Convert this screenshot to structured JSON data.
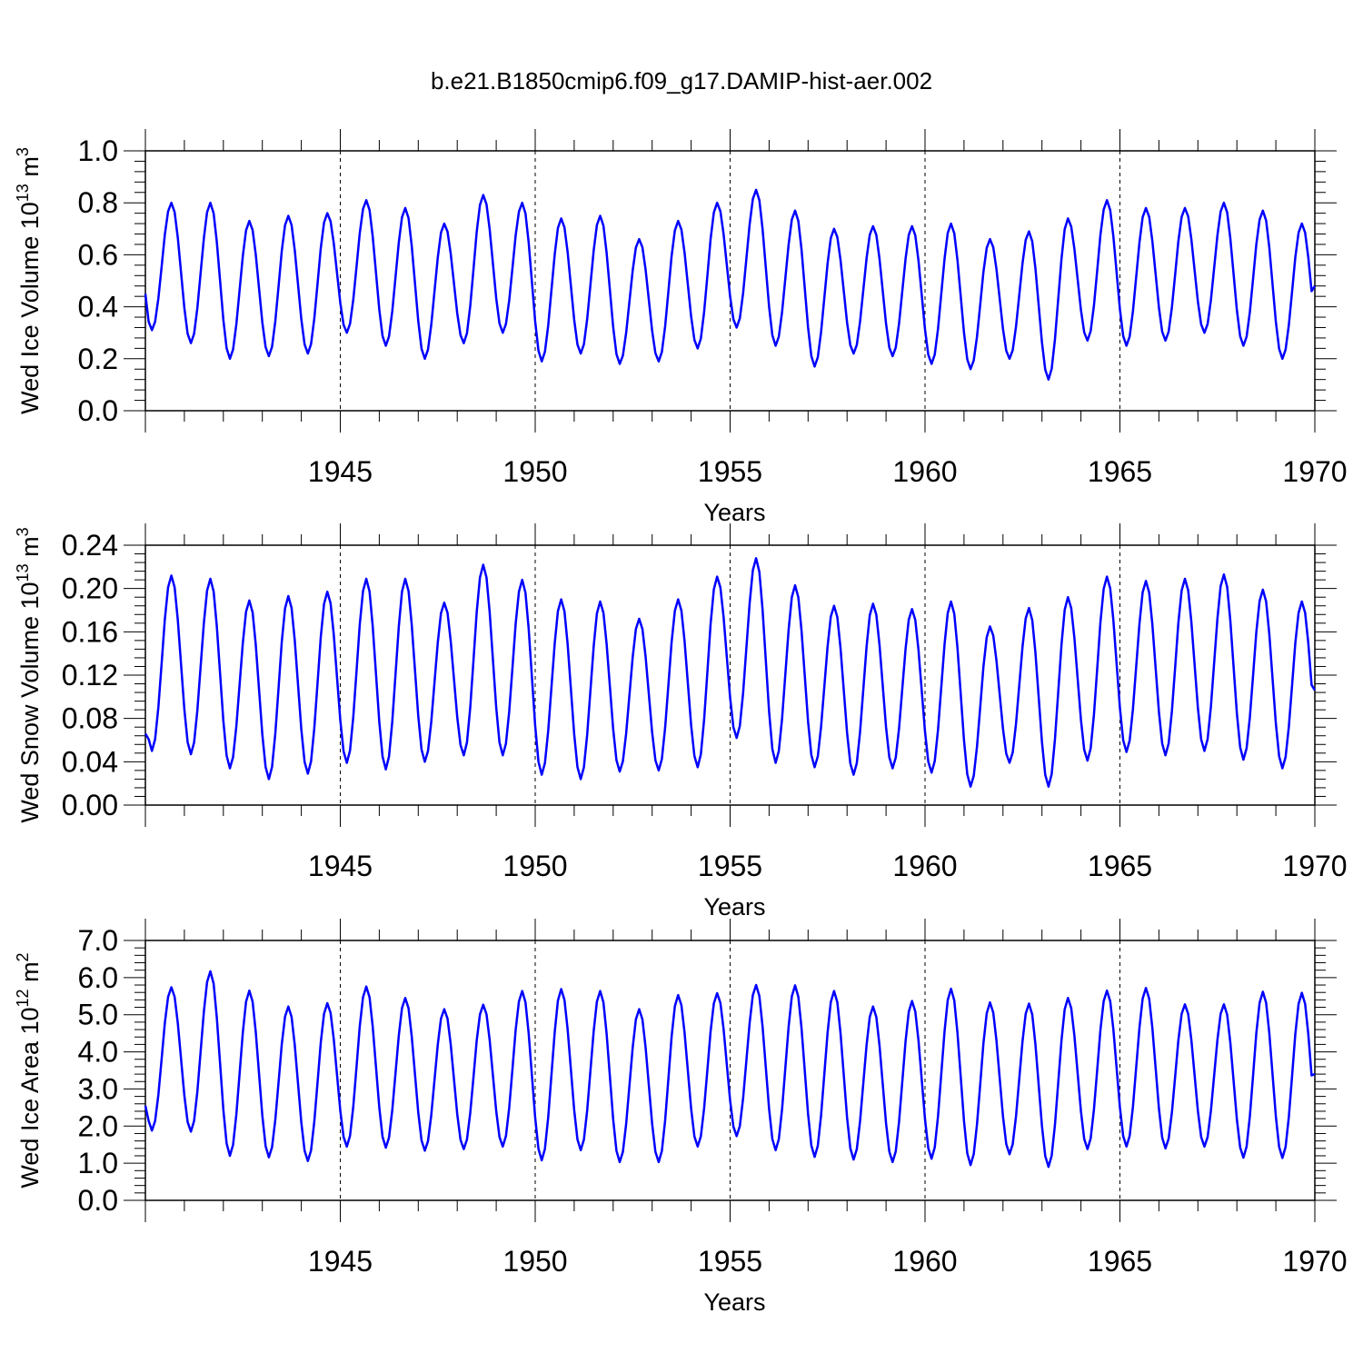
{
  "title": "b.e21.B1850cmip6.f09_g17.DAMIP-hist-aer.002",
  "chart_data": [
    {
      "type": "line",
      "name": "wed-ice-volume",
      "ylabel_main": "Wed Ice Volume 10",
      "ylabel_exp": "13",
      "ylabel_unit": " m",
      "ylabel_unit_exp": "3",
      "xlabel": "Years",
      "xlim": [
        1940,
        1970
      ],
      "ylim": [
        0.0,
        1.0
      ],
      "yticks": [
        "0.0",
        "0.2",
        "0.4",
        "0.6",
        "0.8",
        "1.0"
      ],
      "ytick_values": [
        0.0,
        0.2,
        0.4,
        0.6,
        0.8,
        1.0
      ],
      "xticks": [
        "1945",
        "1950",
        "1955",
        "1960",
        "1965",
        "1970"
      ],
      "xtick_values": [
        1945,
        1950,
        1955,
        1960,
        1965,
        1970
      ],
      "color": "#0000ff",
      "min_month": 2,
      "max_month": 8,
      "annual_min": [
        0.31,
        0.26,
        0.2,
        0.21,
        0.22,
        0.3,
        0.25,
        0.2,
        0.26,
        0.3,
        0.19,
        0.22,
        0.18,
        0.19,
        0.24,
        0.32,
        0.25,
        0.17,
        0.22,
        0.21,
        0.18,
        0.16,
        0.2,
        0.12,
        0.27,
        0.25,
        0.27,
        0.3,
        0.25,
        0.2
      ],
      "annual_max": [
        0.8,
        0.8,
        0.73,
        0.75,
        0.76,
        0.81,
        0.78,
        0.72,
        0.83,
        0.8,
        0.74,
        0.75,
        0.66,
        0.73,
        0.8,
        0.85,
        0.77,
        0.7,
        0.71,
        0.71,
        0.72,
        0.66,
        0.69,
        0.74,
        0.81,
        0.78,
        0.78,
        0.8,
        0.77,
        0.72
      ],
      "start_value": 0.45,
      "end_value": 0.48
    },
    {
      "type": "line",
      "name": "wed-snow-volume",
      "ylabel_main": "Wed Snow Volume 10",
      "ylabel_exp": "13",
      "ylabel_unit": " m",
      "ylabel_unit_exp": "3",
      "xlabel": "Years",
      "xlim": [
        1940,
        1970
      ],
      "ylim": [
        0.0,
        0.24
      ],
      "yticks": [
        "0.00",
        "0.04",
        "0.08",
        "0.12",
        "0.16",
        "0.20",
        "0.24"
      ],
      "ytick_values": [
        0.0,
        0.04,
        0.08,
        0.12,
        0.16,
        0.2,
        0.24
      ],
      "xticks": [
        "1945",
        "1950",
        "1955",
        "1960",
        "1965",
        "1970"
      ],
      "xtick_values": [
        1945,
        1950,
        1955,
        1960,
        1965,
        1970
      ],
      "color": "#0000ff",
      "min_month": 2,
      "max_month": 8,
      "annual_min": [
        0.05,
        0.047,
        0.034,
        0.024,
        0.029,
        0.039,
        0.033,
        0.04,
        0.046,
        0.046,
        0.028,
        0.024,
        0.031,
        0.032,
        0.035,
        0.062,
        0.039,
        0.035,
        0.028,
        0.034,
        0.03,
        0.017,
        0.039,
        0.017,
        0.041,
        0.049,
        0.046,
        0.05,
        0.042,
        0.034
      ],
      "annual_max": [
        0.212,
        0.209,
        0.189,
        0.193,
        0.197,
        0.209,
        0.209,
        0.187,
        0.222,
        0.208,
        0.19,
        0.188,
        0.172,
        0.19,
        0.211,
        0.228,
        0.203,
        0.184,
        0.186,
        0.181,
        0.188,
        0.165,
        0.182,
        0.192,
        0.211,
        0.207,
        0.209,
        0.213,
        0.199,
        0.188
      ],
      "start_value": 0.066,
      "end_value": 0.106
    },
    {
      "type": "line",
      "name": "wed-ice-area",
      "ylabel_main": "Wed Ice Area 10",
      "ylabel_exp": "12",
      "ylabel_unit": " m",
      "ylabel_unit_exp": "2",
      "xlabel": "Years",
      "xlim": [
        1940,
        1970
      ],
      "ylim": [
        0.0,
        7.0
      ],
      "yticks": [
        "0.0",
        "1.0",
        "2.0",
        "3.0",
        "4.0",
        "5.0",
        "6.0",
        "7.0"
      ],
      "ytick_values": [
        0.0,
        1.0,
        2.0,
        3.0,
        4.0,
        5.0,
        6.0,
        7.0
      ],
      "xticks": [
        "1945",
        "1950",
        "1955",
        "1960",
        "1965",
        "1970"
      ],
      "xtick_values": [
        1945,
        1950,
        1955,
        1960,
        1965,
        1970
      ],
      "color": "#0000ff",
      "min_month": 2,
      "max_month": 8,
      "annual_min": [
        1.88,
        1.85,
        1.2,
        1.16,
        1.06,
        1.45,
        1.42,
        1.34,
        1.38,
        1.45,
        1.08,
        1.35,
        1.03,
        1.03,
        1.45,
        1.73,
        1.35,
        1.17,
        1.1,
        1.03,
        1.12,
        0.95,
        1.24,
        0.9,
        1.38,
        1.45,
        1.4,
        1.45,
        1.15,
        1.14
      ],
      "annual_max": [
        5.74,
        6.17,
        5.65,
        5.22,
        5.31,
        5.76,
        5.45,
        5.15,
        5.27,
        5.64,
        5.69,
        5.64,
        5.15,
        5.53,
        5.58,
        5.8,
        5.79,
        5.64,
        5.22,
        5.37,
        5.7,
        5.33,
        5.3,
        5.45,
        5.65,
        5.72,
        5.28,
        5.28,
        5.62,
        5.59
      ],
      "start_value": 2.55,
      "end_value": 3.4
    }
  ]
}
